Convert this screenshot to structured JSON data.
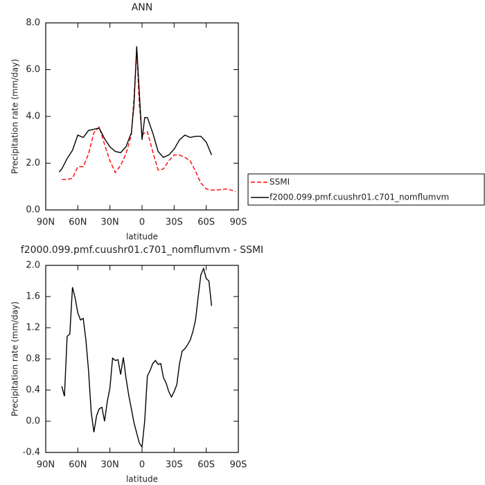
{
  "chart_data": [
    {
      "type": "line",
      "title": "ANN",
      "x_label": "latitude",
      "y_label": "Precipitation rate (mm/day)",
      "x": [
        77.5,
        75,
        70,
        65,
        60,
        55,
        50,
        45,
        40,
        35,
        30,
        25,
        20,
        15,
        10,
        7.5,
        5,
        2.5,
        0,
        -2.5,
        -5,
        -10,
        -15,
        -20,
        -25,
        -30,
        -35,
        -40,
        -45,
        -50,
        -55,
        -60,
        -65,
        -70,
        -75,
        -80,
        -87.5
      ],
      "series": [
        {
          "name": "SSMI",
          "color": "#ff0000",
          "style": "dashed",
          "values": [
            null,
            1.3,
            1.3,
            1.35,
            1.85,
            1.85,
            2.4,
            3.3,
            3.55,
            2.8,
            2.1,
            1.6,
            1.9,
            2.4,
            3.2,
            4.8,
            6.8,
            4.5,
            3.2,
            3.3,
            3.35,
            2.5,
            1.7,
            1.75,
            2.1,
            2.35,
            2.35,
            2.25,
            2.1,
            1.65,
            1.15,
            0.9,
            0.85,
            0.85,
            0.88,
            0.9,
            0.78
          ]
        },
        {
          "name": "f2000.099.pmf.cuushr01.c701_nomflumvm",
          "color": "#000000",
          "style": "solid",
          "values": [
            1.62,
            1.75,
            2.2,
            2.55,
            3.2,
            3.1,
            3.4,
            3.45,
            3.5,
            3.05,
            2.7,
            2.5,
            2.45,
            2.7,
            3.3,
            4.5,
            7.0,
            5.0,
            3.0,
            3.95,
            3.95,
            3.3,
            2.5,
            2.25,
            2.35,
            2.6,
            3.0,
            3.2,
            3.1,
            3.15,
            3.15,
            2.9,
            2.35,
            null,
            null,
            null,
            null
          ]
        }
      ],
      "xlim": [
        90,
        -90
      ],
      "xticks": [
        {
          "value": 90,
          "label": "90N"
        },
        {
          "value": 60,
          "label": "60N"
        },
        {
          "value": 30,
          "label": "30N"
        },
        0,
        {
          "value": -30,
          "label": "30S"
        },
        {
          "value": -60,
          "label": "60S"
        },
        {
          "value": -90,
          "label": "90S"
        }
      ],
      "ylim": [
        0,
        8
      ],
      "yticks": [
        {
          "value": 0,
          "label": "0.0"
        },
        {
          "value": 2,
          "label": "2.0"
        },
        {
          "value": 4,
          "label": "4.0"
        },
        {
          "value": 6,
          "label": "6.0"
        },
        {
          "value": 8,
          "label": "8.0"
        }
      ],
      "legend": "right"
    },
    {
      "type": "line",
      "title": "f2000.099.pmf.cuushr01.c701_nomflumvm - SSMI",
      "x_label": "latitude",
      "y_label": "Precipitation rate (mm/day)",
      "x": [
        75,
        72.5,
        70,
        67.5,
        65,
        62.5,
        60,
        57.5,
        55,
        52.5,
        50,
        47.5,
        45,
        42.5,
        40,
        37.5,
        35,
        32.5,
        30,
        27.5,
        25,
        22.5,
        20,
        17.5,
        15,
        12.5,
        10,
        7.5,
        5,
        2.5,
        0,
        -2.5,
        -5,
        -7.5,
        -10,
        -12.5,
        -15,
        -17.5,
        -20,
        -22.5,
        -25,
        -27.5,
        -30,
        -32.5,
        -35,
        -37.5,
        -40,
        -42.5,
        -45,
        -47.5,
        -50,
        -52.5,
        -55,
        -57.5,
        -60,
        -62.5,
        -65
      ],
      "series": [
        {
          "name": "f2000.099.pmf.cuushr01.c701_nomflumvm - SSMI",
          "color": "#000000",
          "style": "solid",
          "values": [
            0.45,
            0.32,
            1.09,
            1.12,
            1.72,
            1.58,
            1.39,
            1.3,
            1.32,
            1.05,
            0.65,
            0.12,
            -0.14,
            0.07,
            0.16,
            0.18,
            0.0,
            0.25,
            0.43,
            0.81,
            0.78,
            0.79,
            0.6,
            0.82,
            0.56,
            0.34,
            0.16,
            -0.02,
            -0.15,
            -0.28,
            -0.33,
            0.01,
            0.58,
            0.65,
            0.74,
            0.78,
            0.73,
            0.74,
            0.56,
            0.49,
            0.38,
            0.31,
            0.38,
            0.47,
            0.74,
            0.9,
            0.93,
            0.98,
            1.04,
            1.15,
            1.3,
            1.6,
            1.88,
            1.96,
            1.83,
            1.8,
            1.48
          ]
        }
      ],
      "xlim": [
        90,
        -90
      ],
      "xticks": [
        {
          "value": 90,
          "label": "90N"
        },
        {
          "value": 60,
          "label": "60N"
        },
        {
          "value": 30,
          "label": "30N"
        },
        0,
        {
          "value": -30,
          "label": "30S"
        },
        {
          "value": -60,
          "label": "60S"
        },
        {
          "value": -90,
          "label": "90S"
        }
      ],
      "ylim": [
        -0.4,
        2.0
      ],
      "yticks": [
        {
          "value": -0.4,
          "label": "-0.4"
        },
        {
          "value": 0.0,
          "label": "0.0"
        },
        {
          "value": 0.4,
          "label": "0.4"
        },
        {
          "value": 0.8,
          "label": "0.8"
        },
        {
          "value": 1.2,
          "label": "1.2"
        },
        {
          "value": 1.6,
          "label": "1.6"
        },
        {
          "value": 2.0,
          "label": "2.0"
        }
      ]
    }
  ]
}
